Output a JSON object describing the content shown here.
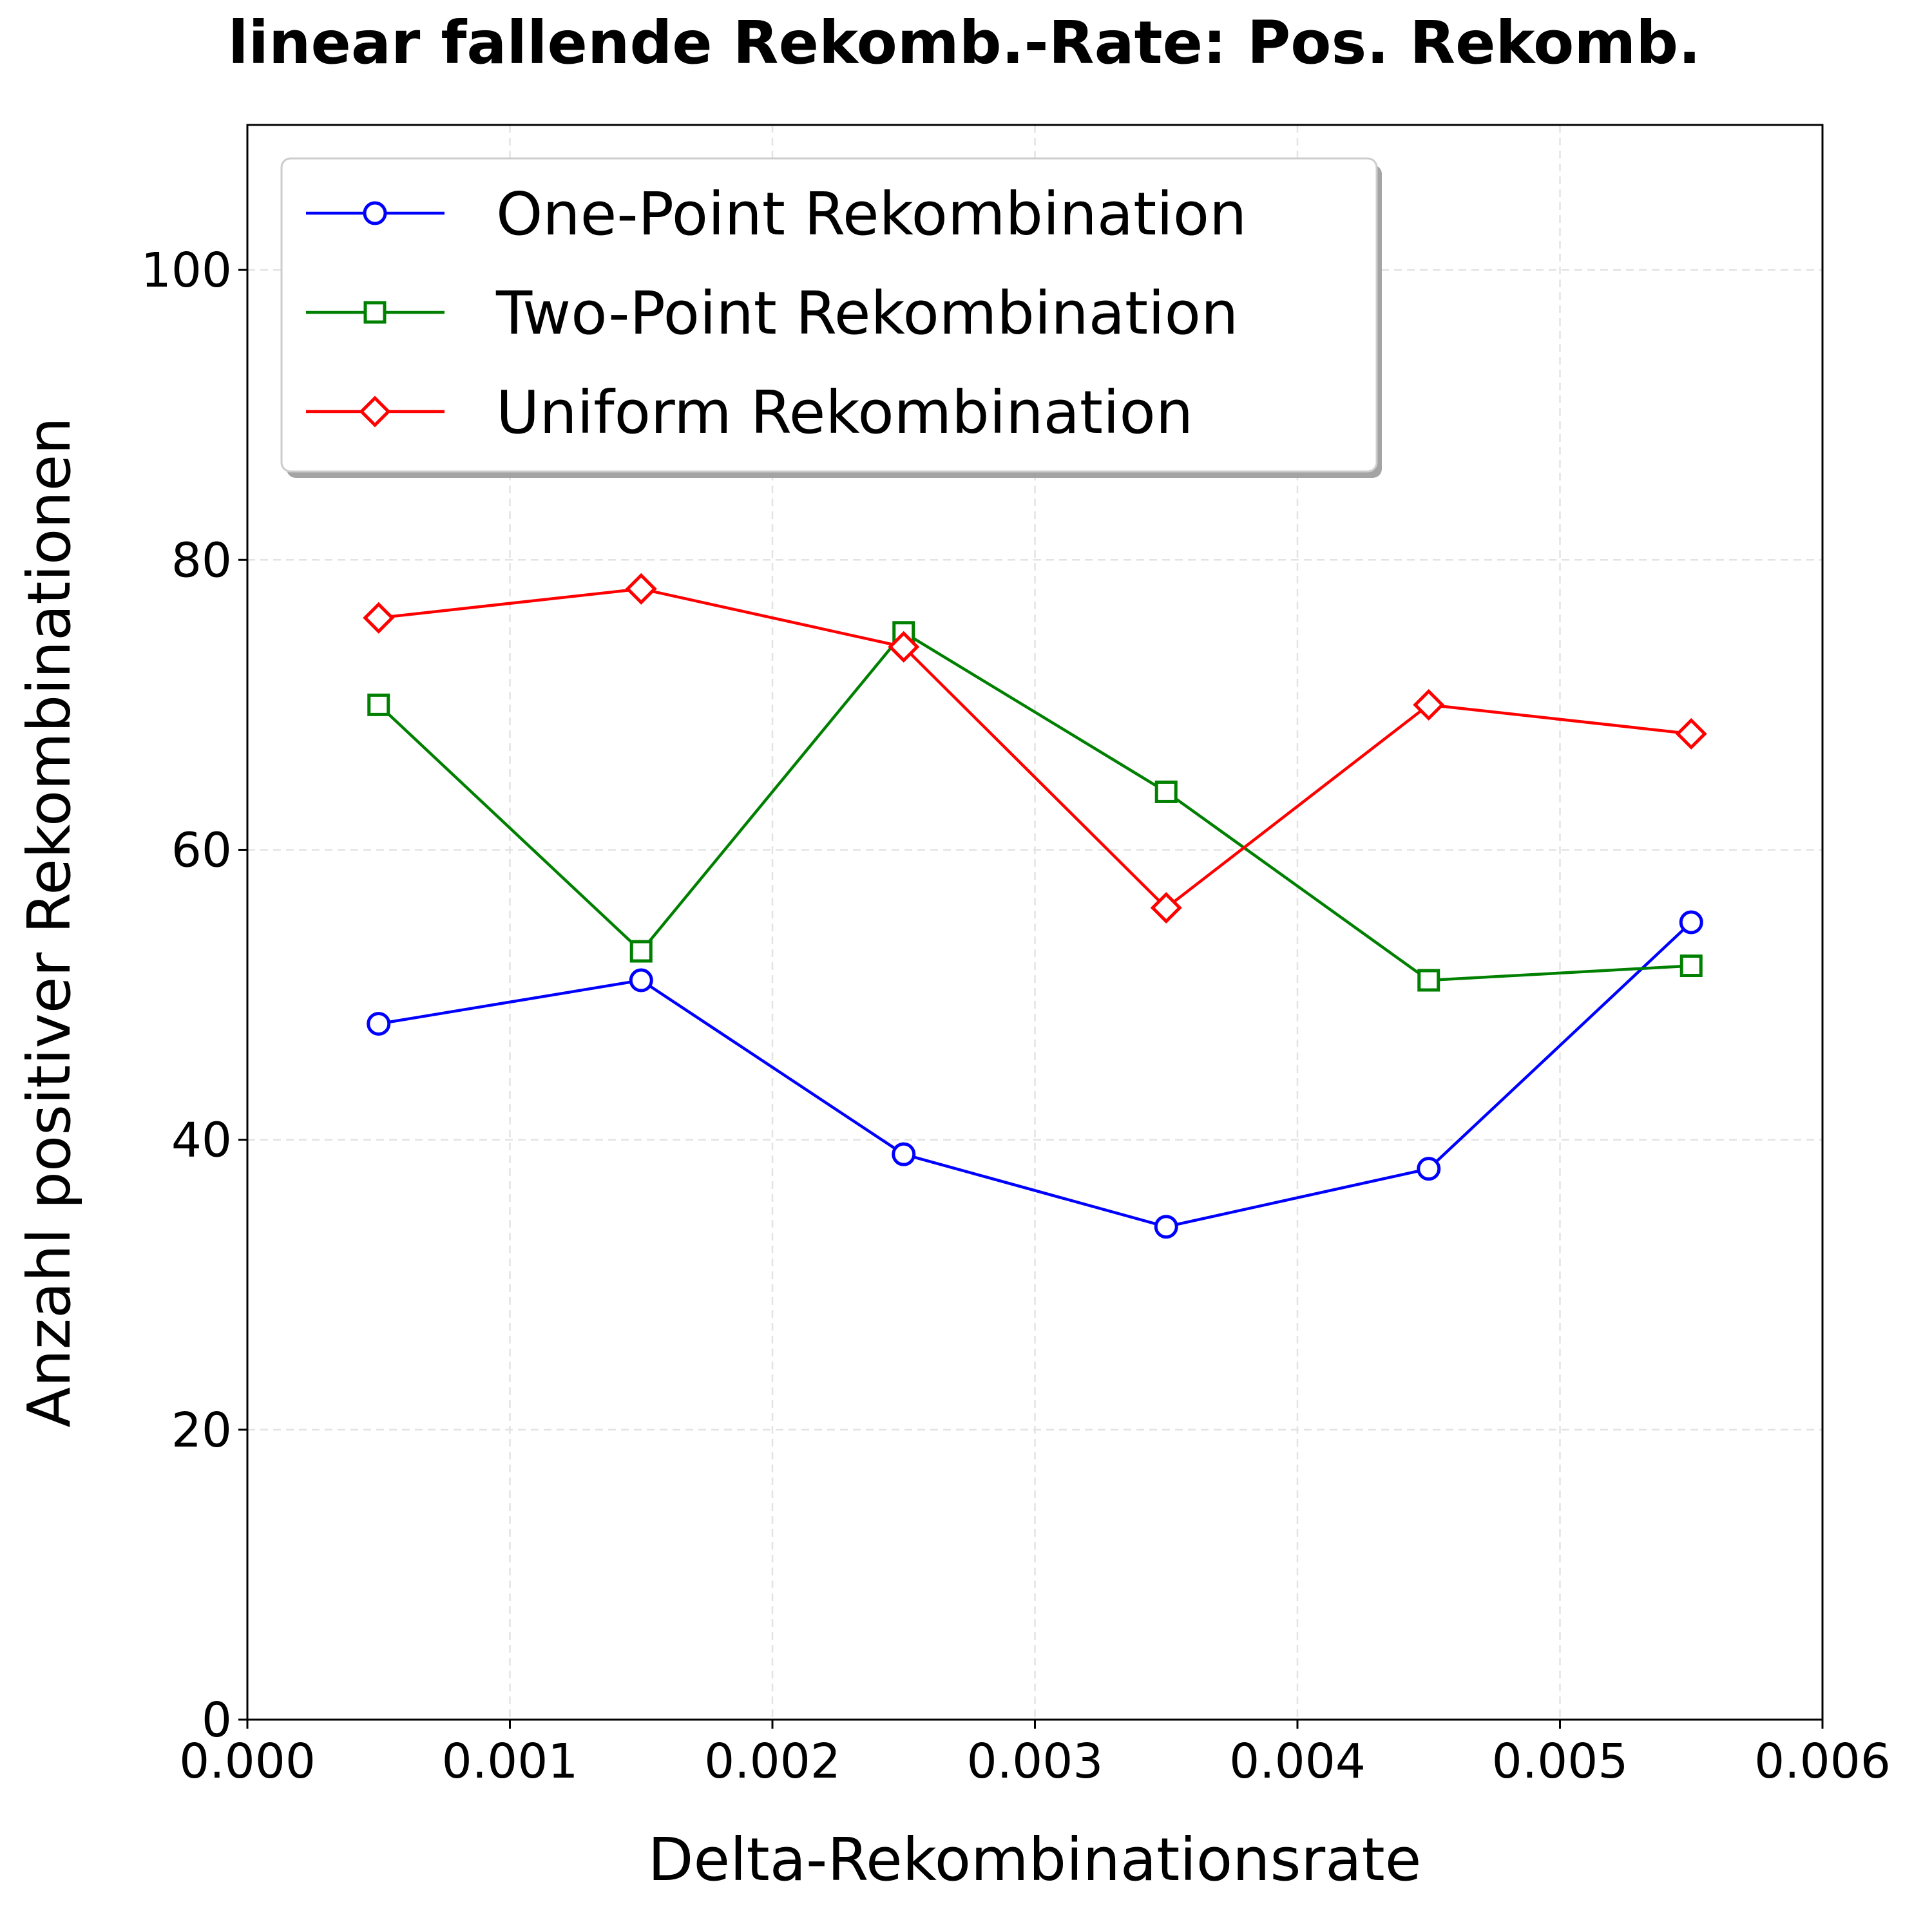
{
  "chart_data": {
    "type": "line",
    "title": "linear fallende Rekomb.-Rate: Pos. Rekomb.",
    "xlabel": "Delta-Rekombinationsrate",
    "ylabel": "Anzahl positiver Rekombinationen",
    "xlim": [
      0.0,
      0.006
    ],
    "ylim": [
      0,
      110
    ],
    "xticks": [
      "0.000",
      "0.001",
      "0.002",
      "0.003",
      "0.004",
      "0.005",
      "0.006"
    ],
    "yticks": [
      "0",
      "20",
      "40",
      "60",
      "80",
      "100"
    ],
    "grid": true,
    "legend_position": "top-left",
    "x": [
      0.0005,
      0.0015,
      0.0025,
      0.0035,
      0.0045,
      0.0055
    ],
    "series": [
      {
        "name": "One-Point Rekombination",
        "color": "#0000ff",
        "marker": "circle",
        "values": [
          48,
          51,
          39,
          34,
          38,
          55
        ]
      },
      {
        "name": "Two-Point Rekombination",
        "color": "#008000",
        "marker": "square",
        "values": [
          70,
          53,
          75,
          64,
          51,
          52
        ]
      },
      {
        "name": "Uniform Rekombination",
        "color": "#ff0000",
        "marker": "diamond",
        "values": [
          76,
          78,
          74,
          56,
          70,
          68
        ]
      }
    ]
  }
}
